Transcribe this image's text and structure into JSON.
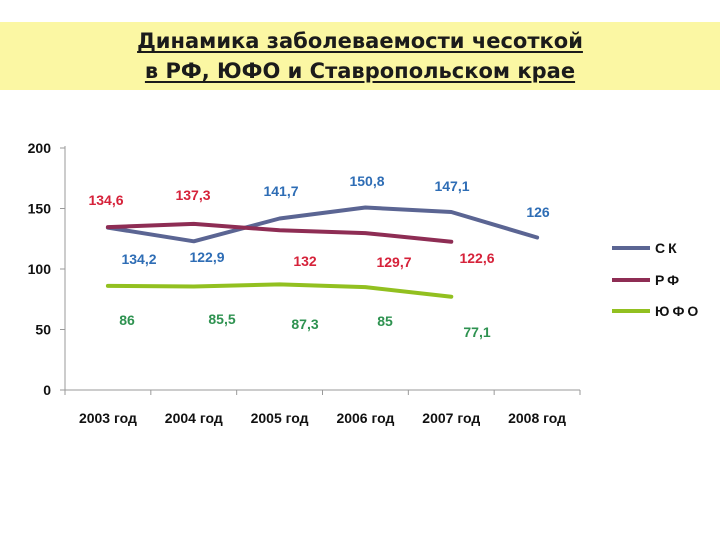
{
  "header": {
    "title_line1": "Динамика заболеваемости чесоткой",
    "title_line2": "в РФ, ЮФО и Ставропольском крае"
  },
  "chart_data": {
    "type": "line",
    "title": "Динамика заболеваемости чесоткой в РФ, ЮФО и Ставропольском крае",
    "xlabel": "",
    "ylabel": "",
    "categories": [
      "2003 год",
      "2004 год",
      "2005 год",
      "2006 год",
      "2007 год",
      "2008 год"
    ],
    "ylim": [
      0,
      200
    ],
    "yticks": [
      0,
      50,
      100,
      150,
      200
    ],
    "grid": false,
    "legend": "right",
    "series": [
      {
        "name": "СК",
        "color": "#5b6593",
        "label_color": "#2e6db5",
        "values": [
          134.2,
          122.9,
          141.7,
          150.8,
          147.1,
          126
        ],
        "labels": [
          "134,2",
          "122,9",
          "141,7",
          "150,8",
          "147,1",
          "126"
        ]
      },
      {
        "name": "РФ",
        "color": "#8e2d54",
        "label_color": "#d6223a",
        "values": [
          134.6,
          137.3,
          132,
          129.7,
          122.6,
          null
        ],
        "labels": [
          "134,6",
          "137,3",
          "132",
          "129,7",
          "122,6",
          null
        ]
      },
      {
        "name": "ЮФО",
        "color": "#92c020",
        "label_color": "#2e9250",
        "values": [
          86,
          85.5,
          87.3,
          85,
          77.1,
          null
        ],
        "labels": [
          "86",
          "85,5",
          "87,3",
          "85",
          "77,1",
          null
        ]
      }
    ]
  }
}
